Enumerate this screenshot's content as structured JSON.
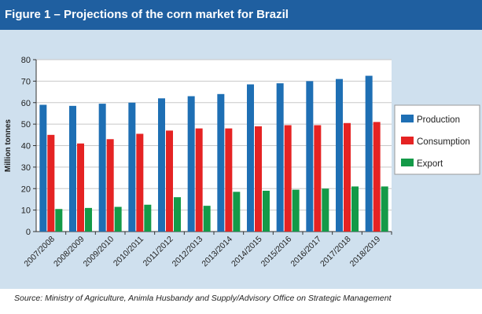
{
  "figure": {
    "title": "Figure 1 – Projections of the corn market for Brazil",
    "source": "Source: Ministry of Agriculture, Animla Husbandy and Supply/Advisory Office on Strategic Management"
  },
  "colors": {
    "title_bar": "#1f5fa0",
    "panel": "#cfe0ee",
    "plot_bg": "#ffffff",
    "grid": "#c8c8c8"
  },
  "chart_data": {
    "type": "bar",
    "title": "Figure 1 – Projections of the corn market for Brazil",
    "xlabel": "",
    "ylabel": "Million tonnes",
    "ylim": [
      0,
      80
    ],
    "yticks": [
      0,
      10,
      20,
      30,
      40,
      50,
      60,
      70,
      80
    ],
    "grid": true,
    "legend_position": "right",
    "categories": [
      "2007/2008",
      "2008/2009",
      "2009/2010",
      "2010/2011",
      "2011/2012",
      "2012/2013",
      "2013/2014",
      "2014/2015",
      "2015/2016",
      "2016/2017",
      "2017/2018",
      "2018/2019"
    ],
    "series": [
      {
        "name": "Production",
        "color": "#1e6fb4",
        "values": [
          59,
          58.5,
          59.5,
          60,
          62,
          63,
          64,
          68.5,
          69,
          70,
          71,
          72.5
        ]
      },
      {
        "name": "Consumption",
        "color": "#e52323",
        "values": [
          45,
          41,
          43,
          45.5,
          47,
          48,
          48,
          49,
          49.5,
          49.5,
          50.5,
          51
        ]
      },
      {
        "name": "Export",
        "color": "#149a48",
        "values": [
          10.5,
          11,
          11.5,
          12.5,
          16,
          12,
          18.5,
          19,
          19.5,
          20,
          21,
          21
        ]
      }
    ]
  }
}
